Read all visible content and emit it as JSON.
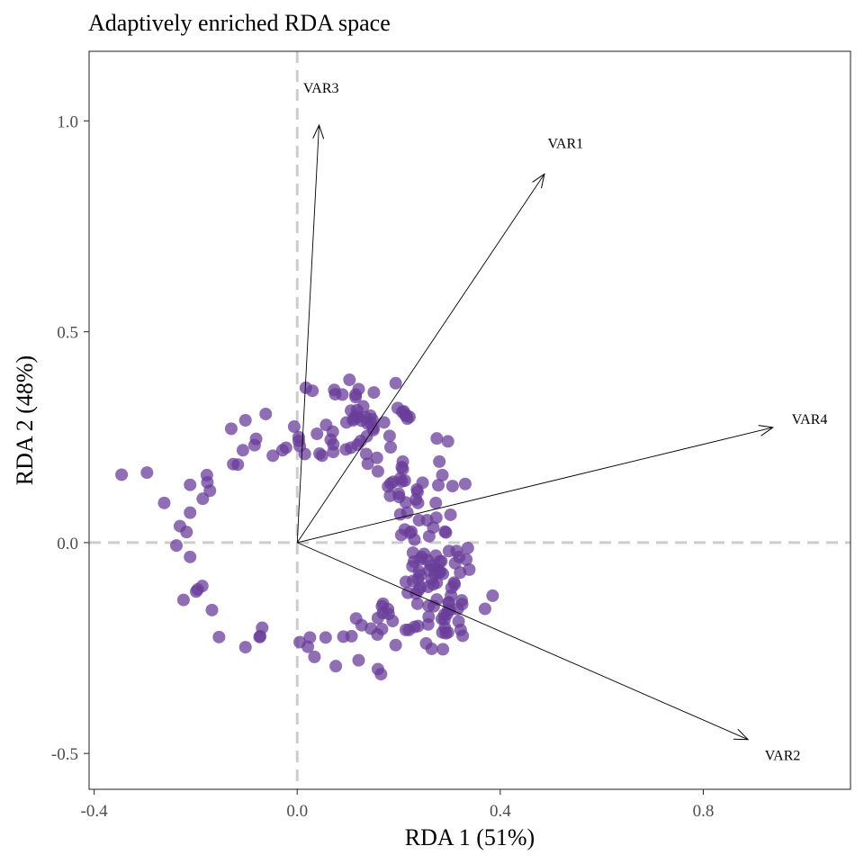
{
  "chart_data": {
    "type": "scatter",
    "title": "Adaptively enriched RDA space",
    "xlabel": "RDA 1 (51%)",
    "ylabel": "RDA 2 (48%)",
    "xlim": [
      -0.41,
      1.09
    ],
    "ylim": [
      -0.585,
      1.165
    ],
    "xticks": [
      -0.4,
      0.0,
      0.4,
      0.8
    ],
    "xtick_labels": [
      "-0.4",
      "0.0",
      "0.4",
      "0.8"
    ],
    "yticks": [
      -0.5,
      0.0,
      0.5,
      1.0
    ],
    "ytick_labels": [
      "-0.5",
      "0.0",
      "0.5",
      "1.0"
    ],
    "grid": false,
    "reference_lines": {
      "x": 0.0,
      "y": 0.0,
      "style": "dashed",
      "color": "#cccccc"
    },
    "point_color": "#6a3d9a",
    "point_opacity": 0.75,
    "arrows": [
      {
        "label": "VAR1",
        "x": 0.487,
        "y": 0.874
      },
      {
        "label": "VAR2",
        "x": 0.888,
        "y": -0.467
      },
      {
        "label": "VAR3",
        "x": 0.043,
        "y": 0.99
      },
      {
        "label": "VAR4",
        "x": 0.937,
        "y": 0.273
      }
    ],
    "points": [
      [
        -0.346,
        0.161
      ],
      [
        -0.296,
        0.166
      ],
      [
        -0.262,
        0.094
      ],
      [
        -0.238,
        -0.007
      ],
      [
        -0.231,
        0.039
      ],
      [
        -0.224,
        -0.136
      ],
      [
        -0.218,
        0.025
      ],
      [
        -0.211,
        0.071
      ],
      [
        -0.211,
        0.137
      ],
      [
        -0.211,
        -0.034
      ],
      [
        -0.199,
        -0.116
      ],
      [
        -0.196,
        -0.111
      ],
      [
        -0.187,
        -0.103
      ],
      [
        -0.186,
        0.104
      ],
      [
        -0.178,
        0.16
      ],
      [
        -0.177,
        0.143
      ],
      [
        -0.172,
        0.123
      ],
      [
        -0.168,
        -0.16
      ],
      [
        -0.154,
        -0.224
      ],
      [
        -0.13,
        0.27
      ],
      [
        -0.126,
        0.186
      ],
      [
        -0.117,
        0.185
      ],
      [
        -0.107,
        0.219
      ],
      [
        -0.102,
        0.29
      ],
      [
        -0.102,
        -0.248
      ],
      [
        -0.084,
        0.231
      ],
      [
        -0.081,
        0.246
      ],
      [
        -0.074,
        -0.224
      ],
      [
        -0.073,
        -0.222
      ],
      [
        -0.069,
        -0.202
      ],
      [
        -0.062,
        0.305
      ],
      [
        -0.048,
        0.206
      ],
      [
        -0.029,
        0.219
      ],
      [
        -0.022,
        0.225
      ],
      [
        -0.006,
        0.275
      ],
      [
        0.003,
        0.25
      ],
      [
        0.003,
        0.241
      ],
      [
        0.005,
        0.229
      ],
      [
        0.005,
        -0.236
      ],
      [
        0.015,
        0.21
      ],
      [
        0.017,
        0.367
      ],
      [
        0.021,
        -0.247
      ],
      [
        0.025,
        -0.225
      ],
      [
        0.03,
        0.36
      ],
      [
        0.034,
        -0.271
      ],
      [
        0.039,
        0.258
      ],
      [
        0.044,
        0.211
      ],
      [
        0.049,
        0.206
      ],
      [
        0.056,
        -0.225
      ],
      [
        0.057,
        0.279
      ],
      [
        0.066,
        0.244
      ],
      [
        0.07,
        0.263
      ],
      [
        0.071,
        0.215
      ],
      [
        0.071,
        0.233
      ],
      [
        0.073,
        0.362
      ],
      [
        0.075,
        0.352
      ],
      [
        0.076,
        -0.293
      ],
      [
        0.089,
        0.351
      ],
      [
        0.091,
        -0.223
      ],
      [
        0.096,
        0.221
      ],
      [
        0.097,
        0.285
      ],
      [
        0.103,
        0.386
      ],
      [
        0.106,
        0.225
      ],
      [
        0.106,
        0.313
      ],
      [
        0.107,
        -0.222
      ],
      [
        0.11,
        0.29
      ],
      [
        0.112,
        0.294
      ],
      [
        0.115,
        0.3
      ],
      [
        0.115,
        0.345
      ],
      [
        0.115,
        0.351
      ],
      [
        0.116,
        -0.18
      ],
      [
        0.118,
        0.314
      ],
      [
        0.119,
        0.232
      ],
      [
        0.12,
        0.298
      ],
      [
        0.121,
        0.364
      ],
      [
        0.121,
        -0.279
      ],
      [
        0.125,
        0.241
      ],
      [
        0.127,
        0.289
      ],
      [
        0.127,
        -0.196
      ],
      [
        0.13,
        0.323
      ],
      [
        0.135,
        0.297
      ],
      [
        0.136,
        0.21
      ],
      [
        0.137,
        0.252
      ],
      [
        0.139,
        0.282
      ],
      [
        0.139,
        0.187
      ],
      [
        0.144,
        0.301
      ],
      [
        0.145,
        0.284
      ],
      [
        0.145,
        -0.204
      ],
      [
        0.148,
        0.292
      ],
      [
        0.15,
        0.272
      ],
      [
        0.15,
        0.267
      ],
      [
        0.151,
        0.356
      ],
      [
        0.157,
        0.201
      ],
      [
        0.158,
        -0.218
      ],
      [
        0.159,
        0.169
      ],
      [
        0.159,
        -0.3
      ],
      [
        0.159,
        -0.179
      ],
      [
        0.165,
        -0.312
      ],
      [
        0.167,
        -0.205
      ],
      [
        0.167,
        -0.151
      ],
      [
        0.169,
        -0.167
      ],
      [
        0.169,
        -0.145
      ],
      [
        0.171,
        0.285
      ],
      [
        0.179,
        0.133
      ],
      [
        0.179,
        -0.158
      ],
      [
        0.18,
        -0.169
      ],
      [
        0.182,
        0.253
      ],
      [
        0.183,
        0.111
      ],
      [
        0.184,
        0.14
      ],
      [
        0.184,
        0.226
      ],
      [
        0.188,
        -0.186
      ],
      [
        0.189,
        0.144
      ],
      [
        0.194,
        0.378
      ],
      [
        0.194,
        -0.243
      ],
      [
        0.198,
        0.319
      ],
      [
        0.2,
        0.116
      ],
      [
        0.201,
        0.108
      ],
      [
        0.203,
        0.152
      ],
      [
        0.203,
        0.067
      ],
      [
        0.205,
        0.018
      ],
      [
        0.206,
        0.145
      ],
      [
        0.206,
        0.179
      ],
      [
        0.207,
        0.31
      ],
      [
        0.208,
        0.192
      ],
      [
        0.208,
        0.174
      ],
      [
        0.21,
        0.311
      ],
      [
        0.212,
        0.031
      ],
      [
        0.212,
        0.147
      ],
      [
        0.213,
        0.302
      ],
      [
        0.214,
        -0.093
      ],
      [
        0.214,
        -0.207
      ],
      [
        0.214,
        0.095
      ],
      [
        0.215,
        0.302
      ],
      [
        0.217,
        0.071
      ],
      [
        0.217,
        0.294
      ],
      [
        0.218,
        -0.119
      ],
      [
        0.22,
        -0.207
      ],
      [
        0.221,
        0.298
      ],
      [
        0.222,
        0.023
      ],
      [
        0.225,
        0.026
      ],
      [
        0.227,
        -0.056
      ],
      [
        0.228,
        -0.024
      ],
      [
        0.228,
        -0.091
      ],
      [
        0.23,
        -0.045
      ],
      [
        0.231,
        0.007
      ],
      [
        0.231,
        -0.2
      ],
      [
        0.234,
        0.102
      ],
      [
        0.234,
        -0.121
      ],
      [
        0.236,
        0.126
      ],
      [
        0.237,
        -0.145
      ],
      [
        0.237,
        0.12
      ],
      [
        0.238,
        0.094
      ],
      [
        0.238,
        -0.198
      ],
      [
        0.238,
        -0.087
      ],
      [
        0.239,
        -0.113
      ],
      [
        0.24,
        0.053
      ],
      [
        0.24,
        -0.069
      ],
      [
        0.242,
        -0.04
      ],
      [
        0.243,
        -0.106
      ],
      [
        0.243,
        -0.077
      ],
      [
        0.245,
        -0.034
      ],
      [
        0.247,
        0.142
      ],
      [
        0.25,
        -0.027
      ],
      [
        0.254,
        -0.239
      ],
      [
        0.256,
        0.053
      ],
      [
        0.257,
        -0.042
      ],
      [
        0.258,
        -0.105
      ],
      [
        0.258,
        -0.194
      ],
      [
        0.259,
        -0.15
      ],
      [
        0.259,
        -0.176
      ],
      [
        0.26,
        0.015
      ],
      [
        0.26,
        -0.066
      ],
      [
        0.263,
        -0.054
      ],
      [
        0.265,
        -0.087
      ],
      [
        0.265,
        -0.252
      ],
      [
        0.268,
        -0.099
      ],
      [
        0.268,
        0.036
      ],
      [
        0.269,
        -0.151
      ],
      [
        0.271,
        -0.074
      ],
      [
        0.271,
        -0.061
      ],
      [
        0.273,
        -0.031
      ],
      [
        0.273,
        0.094
      ],
      [
        0.274,
        0.059
      ],
      [
        0.275,
        -0.095
      ],
      [
        0.275,
        -0.135
      ],
      [
        0.275,
        0.247
      ],
      [
        0.277,
        -0.063
      ],
      [
        0.278,
        0.136
      ],
      [
        0.279,
        -0.071
      ],
      [
        0.279,
        -0.069
      ],
      [
        0.28,
        0.192
      ],
      [
        0.281,
        -0.045
      ],
      [
        0.282,
        -0.069
      ],
      [
        0.284,
        -0.044
      ],
      [
        0.285,
        -0.181
      ],
      [
        0.286,
        0.16
      ],
      [
        0.286,
        -0.213
      ],
      [
        0.287,
        -0.074
      ],
      [
        0.287,
        -0.253
      ],
      [
        0.29,
        -0.183
      ],
      [
        0.29,
        -0.171
      ],
      [
        0.291,
        -0.202
      ],
      [
        0.291,
        0.026
      ],
      [
        0.293,
        0.024
      ],
      [
        0.293,
        -0.215
      ],
      [
        0.295,
        -0.17
      ],
      [
        0.297,
        -0.213
      ],
      [
        0.297,
        0.24
      ],
      [
        0.297,
        -0.161
      ],
      [
        0.298,
        -0.142
      ],
      [
        0.299,
        -0.02
      ],
      [
        0.299,
        -0.142
      ],
      [
        0.301,
        -0.16
      ],
      [
        0.302,
        0.066
      ],
      [
        0.303,
        -0.125
      ],
      [
        0.304,
        -0.107
      ],
      [
        0.306,
        0.134
      ],
      [
        0.309,
        -0.095
      ],
      [
        0.31,
        -0.099
      ],
      [
        0.311,
        -0.049
      ],
      [
        0.314,
        -0.02
      ],
      [
        0.316,
        -0.158
      ],
      [
        0.318,
        -0.187
      ],
      [
        0.319,
        -0.034
      ],
      [
        0.321,
        -0.071
      ],
      [
        0.322,
        -0.207
      ],
      [
        0.324,
        -0.137
      ],
      [
        0.325,
        -0.146
      ],
      [
        0.326,
        -0.221
      ],
      [
        0.331,
        0.139
      ],
      [
        0.333,
        -0.04
      ],
      [
        0.336,
        -0.013
      ],
      [
        0.339,
        -0.064
      ],
      [
        0.37,
        -0.157
      ],
      [
        0.385,
        -0.126
      ]
    ]
  }
}
